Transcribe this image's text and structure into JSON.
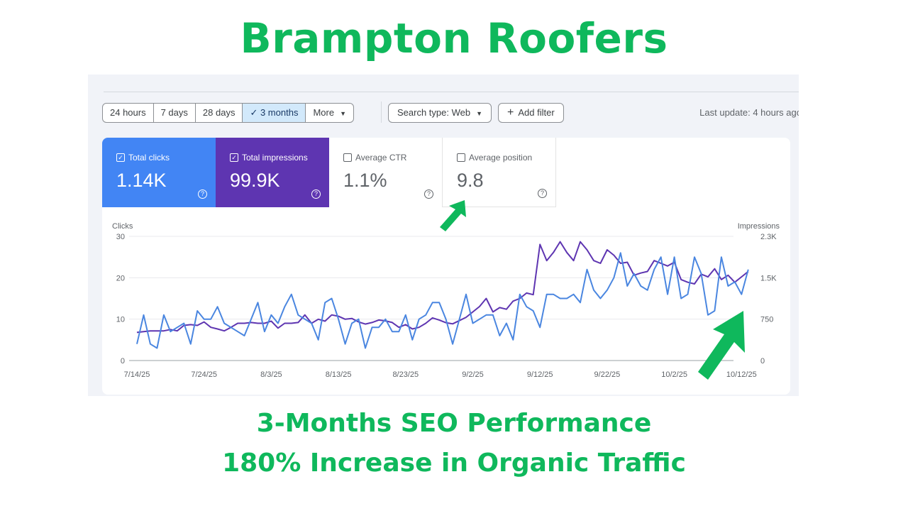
{
  "title": "Brampton Roofers",
  "captions": [
    "3-Months SEO Performance",
    "180% Increase in Organic Traffic"
  ],
  "toolbar": {
    "ranges": [
      "24 hours",
      "7 days",
      "28 days",
      "3 months",
      "More"
    ],
    "active_range": "3 months",
    "search_type": "Search type: Web",
    "add_filter": "Add filter",
    "last_update": "Last update: 4 hours ago"
  },
  "metrics": [
    {
      "label": "Total clicks",
      "value": "1.14K",
      "checked": true
    },
    {
      "label": "Total impressions",
      "value": "99.9K",
      "checked": true
    },
    {
      "label": "Average CTR",
      "value": "1.1%",
      "checked": false
    },
    {
      "label": "Average position",
      "value": "9.8",
      "checked": false
    }
  ],
  "colors": {
    "accent": "#0fb85c",
    "clicks": "#4a86e0",
    "impressions": "#5e35b1"
  },
  "chart_data": {
    "type": "line",
    "left_axis_label": "Clicks",
    "right_axis_label": "Impressions",
    "left_ticks": [
      "0",
      "10",
      "20",
      "30"
    ],
    "left_range": [
      0,
      30
    ],
    "right_ticks": [
      "0",
      "750",
      "1.5K",
      "2.3K"
    ],
    "right_range": [
      0,
      2300
    ],
    "x_tick_labels": [
      "7/14/25",
      "7/24/25",
      "8/3/25",
      "8/13/25",
      "8/23/25",
      "9/2/25",
      "9/12/25",
      "9/22/25",
      "10/2/25",
      "10/12/25"
    ],
    "x_tick_interval_days": 10,
    "start_date": "7/14/25",
    "series": [
      {
        "name": "Clicks",
        "axis": "left",
        "values": [
          4,
          11,
          4,
          3,
          11,
          7,
          8,
          9,
          4,
          12,
          10,
          10,
          13,
          9,
          8,
          7,
          6,
          10,
          14,
          7,
          11,
          9,
          13,
          16,
          11,
          10,
          9,
          5,
          14,
          15,
          10,
          4,
          9,
          10,
          3,
          8,
          8,
          10,
          7,
          7,
          11,
          5,
          10,
          11,
          14,
          14,
          10,
          4,
          10,
          16,
          9,
          10,
          11,
          11,
          6,
          9,
          5,
          16,
          13,
          12,
          8,
          16,
          16,
          15,
          15,
          16,
          14,
          22,
          17,
          15,
          17,
          20,
          26,
          18,
          21,
          18,
          17,
          22,
          25,
          16,
          25,
          15,
          16,
          25,
          21,
          11,
          12,
          25,
          18,
          19,
          16,
          22
        ]
      },
      {
        "name": "Impressions",
        "axis": "right",
        "values": [
          520,
          535,
          550,
          550,
          550,
          575,
          550,
          650,
          665,
          650,
          715,
          615,
          585,
          550,
          615,
          690,
          690,
          705,
          690,
          690,
          730,
          600,
          690,
          690,
          705,
          845,
          690,
          765,
          730,
          845,
          820,
          765,
          780,
          715,
          675,
          705,
          750,
          735,
          705,
          615,
          665,
          585,
          615,
          690,
          790,
          750,
          700,
          680,
          740,
          800,
          900,
          1000,
          1150,
          900,
          980,
          950,
          1100,
          1150,
          1250,
          1220,
          2150,
          1850,
          2000,
          2200,
          2000,
          1850,
          2200,
          2050,
          1850,
          1800,
          2050,
          1950,
          1800,
          1820,
          1580,
          1620,
          1650,
          1850,
          1800,
          1750,
          1820,
          1500,
          1450,
          1420,
          1600,
          1550,
          1700,
          1500,
          1580,
          1450,
          1550,
          1650
        ]
      }
    ]
  }
}
